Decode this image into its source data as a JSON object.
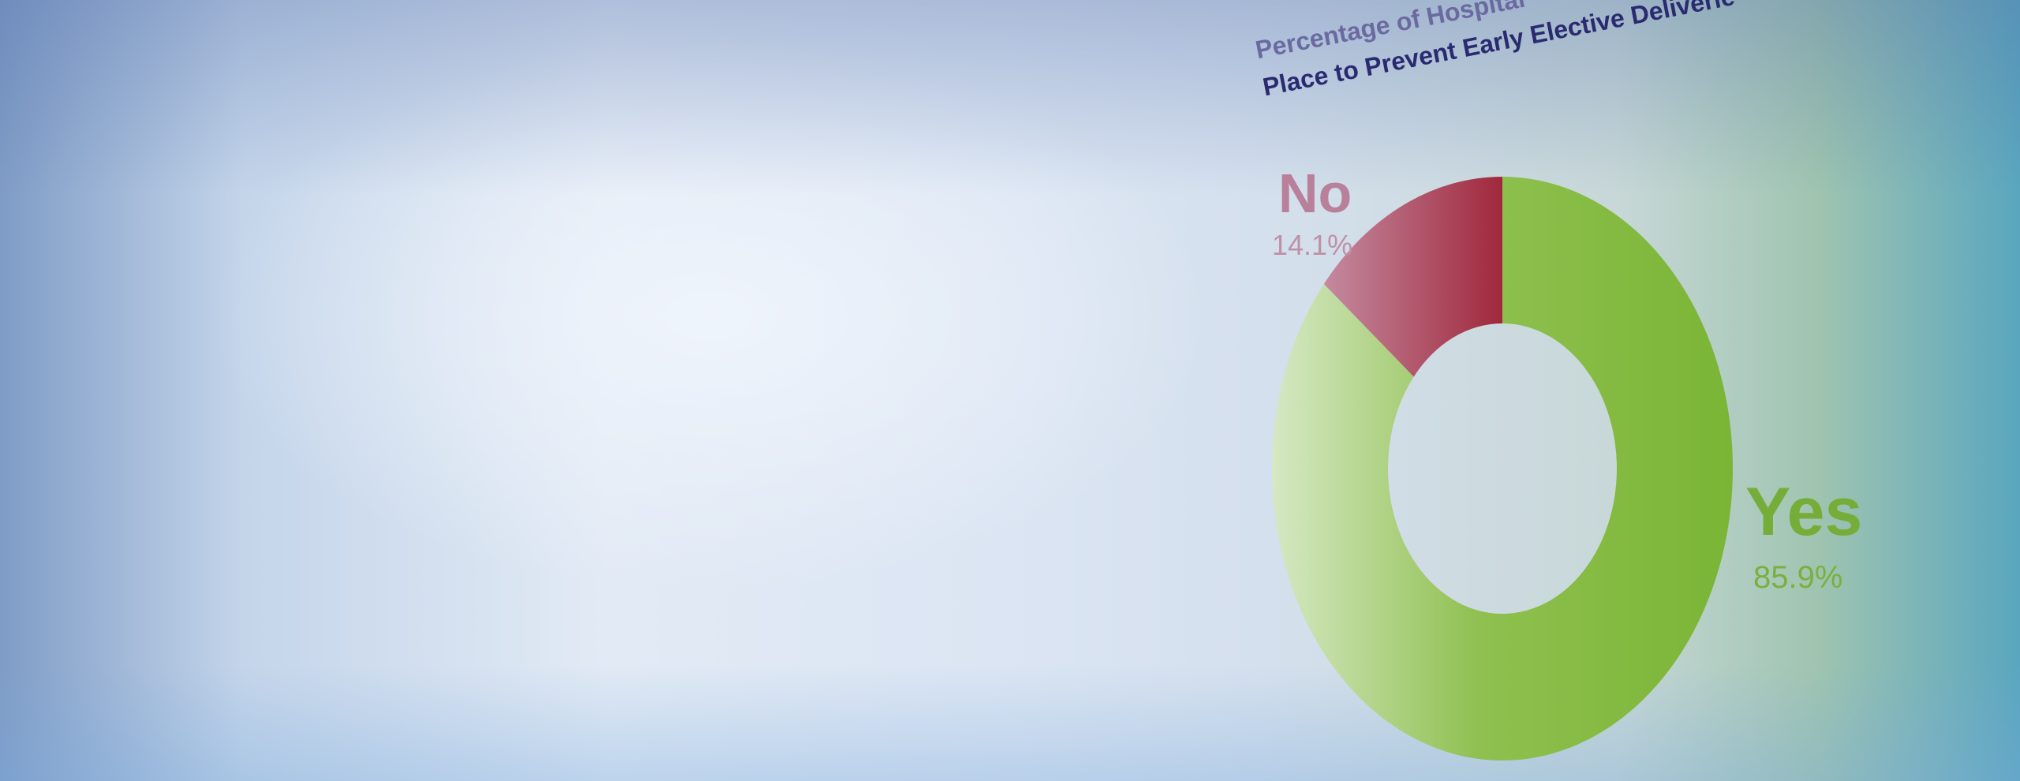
{
  "chart_data": {
    "type": "pie",
    "variant": "donut",
    "title_lines": [
      "Percentage of Hospital",
      "Place to Prevent Early Elective Deliverie"
    ],
    "categories": [
      "Yes",
      "No"
    ],
    "values": [
      85.9,
      14.1
    ],
    "value_labels": [
      "85.9%",
      "14.1%"
    ],
    "colors": {
      "Yes": "#7db63a",
      "No": "#a3283e"
    }
  }
}
